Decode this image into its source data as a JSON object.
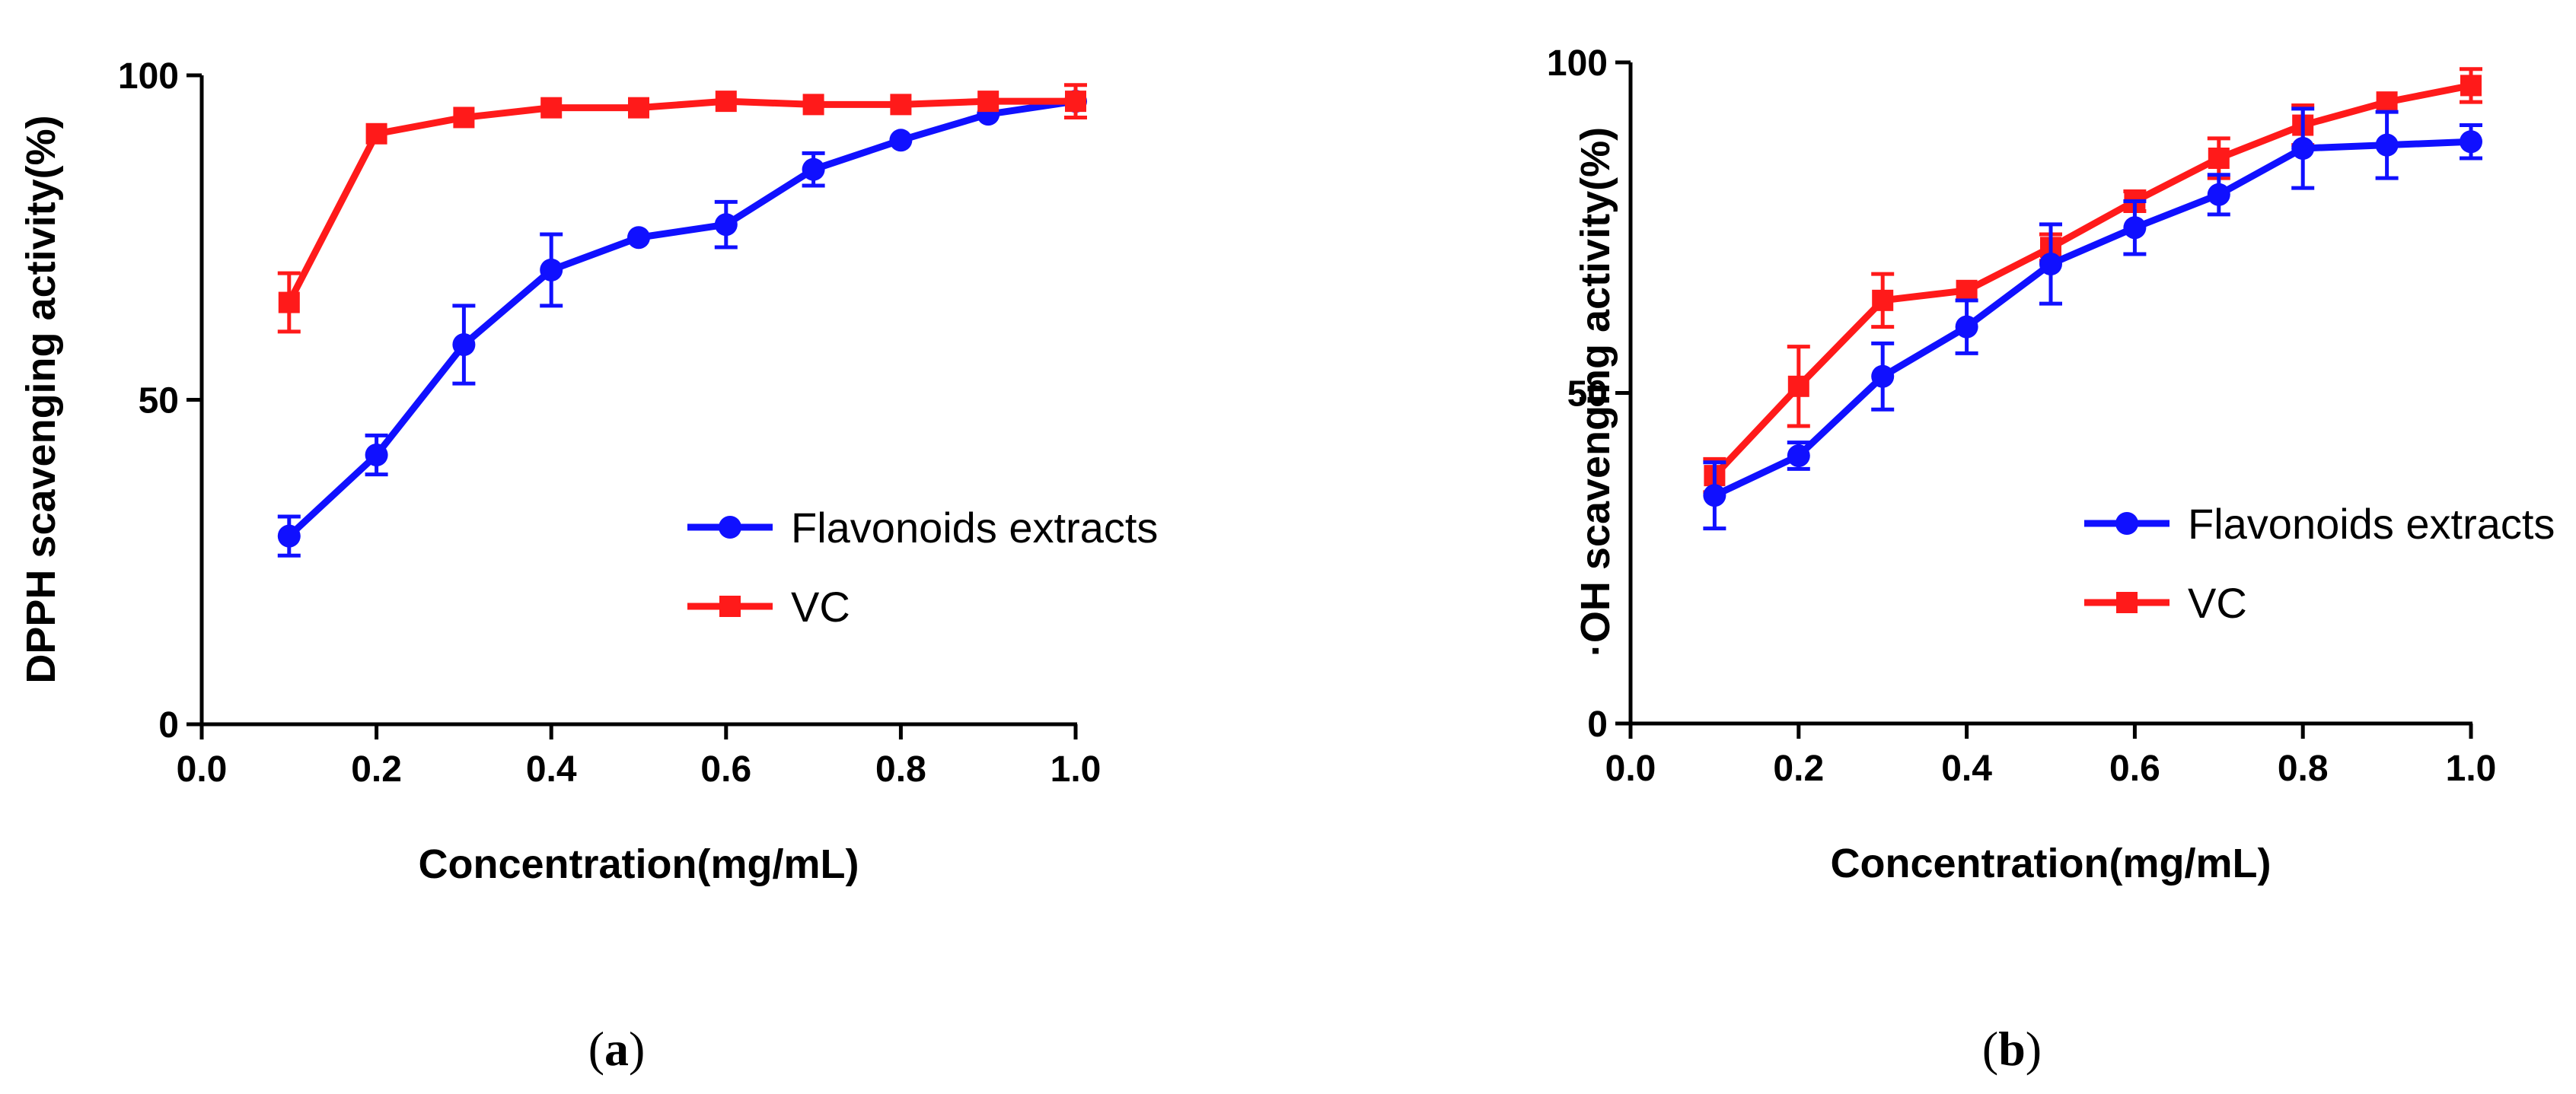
{
  "chart_data": [
    {
      "type": "line",
      "panel": "a",
      "caption_letter": "a",
      "caption_open": "(",
      "caption_close": ")",
      "xlabel": "Concentration(mg/mL)",
      "ylabel": "DPPH  scavenging activity(%)",
      "xlim": [
        0.0,
        1.0
      ],
      "ylim": [
        0,
        100
      ],
      "xticks": [
        "0.0",
        "0.2",
        "0.4",
        "0.6",
        "0.8",
        "1.0"
      ],
      "yticks": [
        "0",
        "50",
        "100"
      ],
      "grid": false,
      "legend_position": "lower-right",
      "x": [
        0.1,
        0.2,
        0.3,
        0.4,
        0.5,
        0.6,
        0.7,
        0.8,
        0.9,
        1.0
      ],
      "series": [
        {
          "name": "Flavonoids extracts",
          "color": "#1010ff",
          "marker": "circle",
          "values": [
            29,
            41.5,
            58.5,
            70,
            75,
            77,
            85.5,
            90,
            94,
            96
          ],
          "errors": [
            3,
            3,
            6,
            5.5,
            0,
            3.5,
            2.5,
            0,
            0,
            0
          ]
        },
        {
          "name": "VC",
          "color": "#ff1a1a",
          "marker": "square",
          "values": [
            65,
            91,
            93.5,
            95,
            95,
            96,
            95.5,
            95.5,
            96,
            96
          ],
          "errors": [
            4.5,
            0,
            0,
            0,
            0,
            0,
            0,
            0,
            0,
            2.5
          ]
        }
      ]
    },
    {
      "type": "line",
      "panel": "b",
      "caption_letter": "b",
      "caption_open": "(",
      "caption_close": ")",
      "xlabel": "Concentration(mg/mL)",
      "ylabel": "·OH  scavenging activity(%)",
      "xlim": [
        0.0,
        1.0
      ],
      "ylim": [
        0,
        100
      ],
      "xticks": [
        "0.0",
        "0.2",
        "0.4",
        "0.6",
        "0.8",
        "1.0"
      ],
      "yticks": [
        "0",
        "50",
        "100"
      ],
      "grid": false,
      "legend_position": "lower-right",
      "x": [
        0.1,
        0.2,
        0.3,
        0.4,
        0.5,
        0.6,
        0.7,
        0.8,
        0.9,
        1.0
      ],
      "series": [
        {
          "name": "Flavonoids extracts",
          "color": "#1010ff",
          "marker": "circle",
          "values": [
            34.5,
            40.5,
            52.5,
            60,
            69.5,
            75,
            80,
            87,
            87.5,
            88
          ],
          "errors": [
            5,
            2,
            5,
            4,
            6,
            4,
            3,
            6,
            5,
            2.5
          ]
        },
        {
          "name": "VC",
          "color": "#ff1a1a",
          "marker": "square",
          "values": [
            37.5,
            51,
            64,
            65.5,
            72,
            79,
            85.5,
            90.5,
            94,
            96.5
          ],
          "errors": [
            2.5,
            6,
            4,
            0,
            2,
            1.5,
            3,
            3,
            0,
            2.5
          ]
        }
      ]
    }
  ]
}
